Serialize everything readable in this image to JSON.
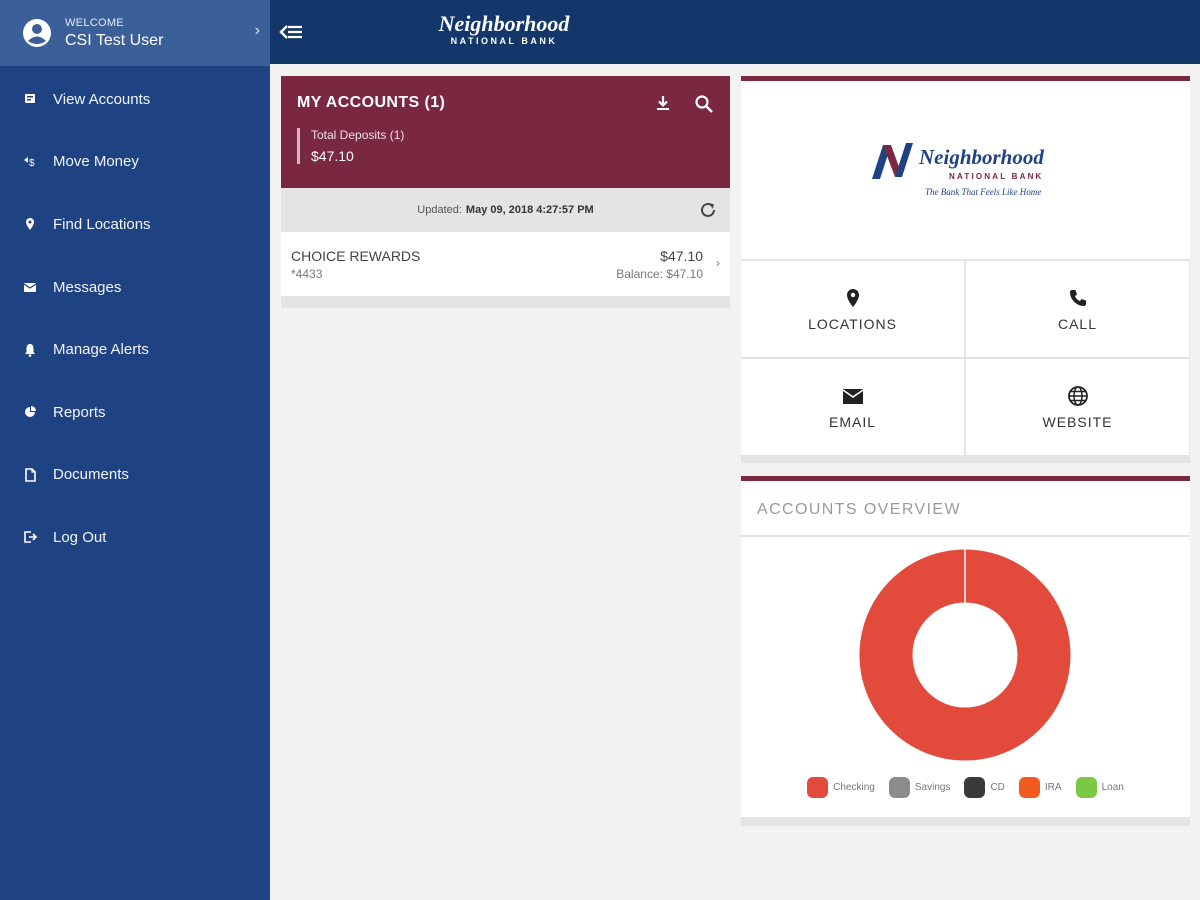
{
  "user": {
    "welcome": "WELCOME",
    "name": "CSI Test User"
  },
  "nav": [
    {
      "label": "View Accounts",
      "icon": "accounts-icon"
    },
    {
      "label": "Move Money",
      "icon": "move-money-icon"
    },
    {
      "label": "Find Locations",
      "icon": "location-pin-icon"
    },
    {
      "label": "Messages",
      "icon": "envelope-icon"
    },
    {
      "label": "Manage Alerts",
      "icon": "bell-icon"
    },
    {
      "label": "Reports",
      "icon": "pie-chart-icon"
    },
    {
      "label": "Documents",
      "icon": "document-icon"
    },
    {
      "label": "Log Out",
      "icon": "logout-icon"
    }
  ],
  "brand": {
    "name": "Neighborhood",
    "sub": "NATIONAL BANK",
    "tagline": "The Bank That Feels Like Home"
  },
  "accounts": {
    "title": "MY ACCOUNTS (1)",
    "total_label": "Total Deposits (1)",
    "total_value": "$47.10",
    "updated_label": "Updated:",
    "updated_value": "May 09, 2018 4:27:57 PM",
    "rows": [
      {
        "name": "CHOICE REWARDS",
        "number": "*4433",
        "amount": "$47.10",
        "balance": "Balance: $47.10"
      }
    ]
  },
  "contact": {
    "locations": "LOCATIONS",
    "call": "CALL",
    "email": "EMAIL",
    "website": "WEBSITE"
  },
  "overview": {
    "title": "ACCOUNTS OVERVIEW"
  },
  "chart_data": {
    "type": "pie",
    "donut": true,
    "title": "",
    "categories": [
      "Checking",
      "Savings",
      "CD",
      "IRA",
      "Loan"
    ],
    "values": [
      47.1,
      0,
      0,
      0,
      0
    ],
    "colors": [
      "#e24b3b",
      "#8c8c8c",
      "#3a3a3a",
      "#f25a1e",
      "#7ac943"
    ],
    "legend": "bottom"
  },
  "colors": {
    "sidebar": "#1f4283",
    "topbar": "#13366b",
    "accent": "#7a2840"
  }
}
